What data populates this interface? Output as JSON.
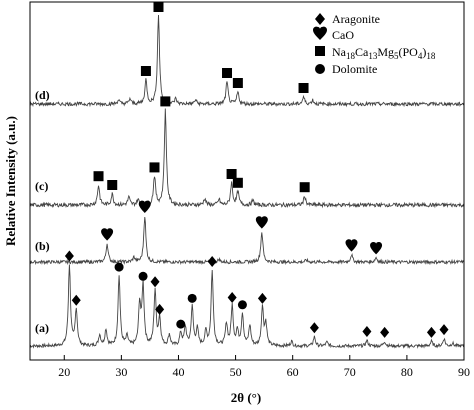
{
  "chart_data": {
    "type": "line",
    "xlabel": "2θ (°)",
    "ylabel": "Relative Intensity (a.u.)",
    "xlim": [
      14,
      90
    ],
    "x_ticks": [
      "20",
      "30",
      "40",
      "50",
      "60",
      "70",
      "80",
      "90"
    ],
    "grid": false,
    "legend_position": "top-right",
    "legend": [
      {
        "marker": "diamond",
        "label": "Aragonite"
      },
      {
        "marker": "heart",
        "label": "CaO"
      },
      {
        "marker": "square",
        "label_main": "Na",
        "label_sub1": "18",
        "label_mid1": "Ca",
        "label_sub2": "13",
        "label_mid2": "Mg",
        "label_sub3": "5",
        "label_mid3": "(PO",
        "label_sub4": "4",
        "label_mid4": ")",
        "label_sub5": "18"
      },
      {
        "marker": "circle",
        "label": "Dolomite"
      }
    ],
    "series": [
      {
        "label": "(a)",
        "peaks": [
          {
            "x": 20.9,
            "h": 0.88
          },
          {
            "x": 22.1,
            "h": 0.4
          },
          {
            "x": 26.2,
            "h": 0.12
          },
          {
            "x": 27.3,
            "h": 0.18
          },
          {
            "x": 29.6,
            "h": 0.76
          },
          {
            "x": 31.0,
            "h": 0.1
          },
          {
            "x": 33.2,
            "h": 0.45
          },
          {
            "x": 33.8,
            "h": 0.66
          },
          {
            "x": 35.9,
            "h": 0.6
          },
          {
            "x": 36.7,
            "h": 0.3
          },
          {
            "x": 38.4,
            "h": 0.12
          },
          {
            "x": 40.4,
            "h": 0.14
          },
          {
            "x": 41.2,
            "h": 0.2
          },
          {
            "x": 42.4,
            "h": 0.42
          },
          {
            "x": 43.3,
            "h": 0.18
          },
          {
            "x": 44.8,
            "h": 0.15
          },
          {
            "x": 45.9,
            "h": 0.82
          },
          {
            "x": 48.4,
            "h": 0.24
          },
          {
            "x": 49.4,
            "h": 0.43
          },
          {
            "x": 50.3,
            "h": 0.16
          },
          {
            "x": 51.2,
            "h": 0.35
          },
          {
            "x": 52.5,
            "h": 0.22
          },
          {
            "x": 54.7,
            "h": 0.42
          },
          {
            "x": 55.3,
            "h": 0.24
          },
          {
            "x": 59.8,
            "h": 0.05
          },
          {
            "x": 63.8,
            "h": 0.1
          },
          {
            "x": 66.0,
            "h": 0.04
          },
          {
            "x": 73.0,
            "h": 0.06
          },
          {
            "x": 76.1,
            "h": 0.05
          },
          {
            "x": 84.3,
            "h": 0.05
          },
          {
            "x": 86.5,
            "h": 0.08
          },
          {
            "x": 88.0,
            "h": 0.03
          }
        ],
        "markers": [
          {
            "x": 20.9,
            "symbol": "diamond"
          },
          {
            "x": 22.1,
            "symbol": "diamond"
          },
          {
            "x": 29.6,
            "symbol": "circle"
          },
          {
            "x": 33.8,
            "symbol": "circle"
          },
          {
            "x": 35.9,
            "symbol": "diamond"
          },
          {
            "x": 36.7,
            "symbol": "diamond"
          },
          {
            "x": 40.4,
            "symbol": "circle"
          },
          {
            "x": 42.4,
            "symbol": "circle"
          },
          {
            "x": 45.9,
            "symbol": "diamond"
          },
          {
            "x": 49.4,
            "symbol": "diamond"
          },
          {
            "x": 51.2,
            "symbol": "circle"
          },
          {
            "x": 54.7,
            "symbol": "diamond"
          },
          {
            "x": 63.8,
            "symbol": "diamond"
          },
          {
            "x": 73.0,
            "symbol": "diamond"
          },
          {
            "x": 76.1,
            "symbol": "diamond"
          },
          {
            "x": 84.3,
            "symbol": "diamond"
          },
          {
            "x": 86.5,
            "symbol": "diamond"
          }
        ]
      },
      {
        "label": "(b)",
        "peaks": [
          {
            "x": 27.5,
            "h": 0.2
          },
          {
            "x": 32.2,
            "h": 0.05
          },
          {
            "x": 34.1,
            "h": 0.5
          },
          {
            "x": 47.1,
            "h": 0.03
          },
          {
            "x": 54.6,
            "h": 0.33
          },
          {
            "x": 62.4,
            "h": 0.02
          },
          {
            "x": 70.3,
            "h": 0.08
          },
          {
            "x": 74.6,
            "h": 0.05
          }
        ],
        "markers": [
          {
            "x": 27.5,
            "symbol": "heart"
          },
          {
            "x": 34.1,
            "symbol": "heart"
          },
          {
            "x": 54.6,
            "symbol": "heart"
          },
          {
            "x": 70.3,
            "symbol": "heart"
          },
          {
            "x": 74.6,
            "symbol": "heart"
          }
        ]
      },
      {
        "label": "(c)",
        "peaks": [
          {
            "x": 26.0,
            "h": 0.18
          },
          {
            "x": 28.4,
            "h": 0.1
          },
          {
            "x": 31.3,
            "h": 0.07
          },
          {
            "x": 32.9,
            "h": 0.05
          },
          {
            "x": 35.8,
            "h": 0.26
          },
          {
            "x": 37.7,
            "h": 0.86
          },
          {
            "x": 44.6,
            "h": 0.06
          },
          {
            "x": 47.1,
            "h": 0.05
          },
          {
            "x": 49.3,
            "h": 0.2
          },
          {
            "x": 50.4,
            "h": 0.12
          },
          {
            "x": 53.0,
            "h": 0.04
          },
          {
            "x": 62.1,
            "h": 0.08
          }
        ],
        "markers": [
          {
            "x": 26.0,
            "symbol": "square"
          },
          {
            "x": 28.4,
            "symbol": "square"
          },
          {
            "x": 35.8,
            "symbol": "square"
          },
          {
            "x": 37.7,
            "symbol": "square"
          },
          {
            "x": 49.3,
            "symbol": "square"
          },
          {
            "x": 50.4,
            "symbol": "square"
          },
          {
            "x": 62.1,
            "symbol": "square"
          }
        ]
      },
      {
        "label": "(d)",
        "peaks": [
          {
            "x": 29.5,
            "h": 0.04
          },
          {
            "x": 31.5,
            "h": 0.05
          },
          {
            "x": 34.3,
            "h": 0.24
          },
          {
            "x": 36.5,
            "h": 0.88
          },
          {
            "x": 39.5,
            "h": 0.05
          },
          {
            "x": 43.0,
            "h": 0.04
          },
          {
            "x": 48.5,
            "h": 0.22
          },
          {
            "x": 50.4,
            "h": 0.12
          },
          {
            "x": 61.9,
            "h": 0.07
          },
          {
            "x": 63.5,
            "h": 0.04
          }
        ],
        "markers": [
          {
            "x": 34.3,
            "symbol": "square"
          },
          {
            "x": 36.5,
            "symbol": "square"
          },
          {
            "x": 48.5,
            "symbol": "square"
          },
          {
            "x": 50.4,
            "symbol": "square"
          },
          {
            "x": 61.9,
            "symbol": "square"
          }
        ]
      }
    ]
  }
}
